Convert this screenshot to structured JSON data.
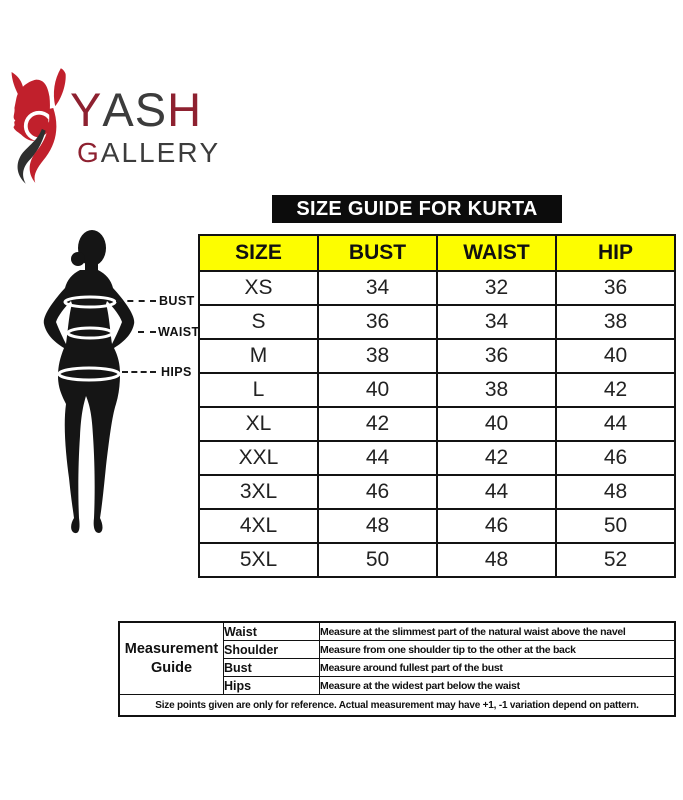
{
  "title": "SIZE GUIDE FOR KURTA",
  "brand": {
    "top_letters": [
      [
        "Y",
        "red"
      ],
      [
        "A",
        "dark"
      ],
      [
        "S",
        "dark"
      ],
      [
        "H",
        "red"
      ]
    ],
    "bottom_letters": [
      [
        "G",
        "red"
      ],
      [
        "A",
        "dark"
      ],
      [
        "L",
        "dark"
      ],
      [
        "L",
        "dark"
      ],
      [
        "E",
        "dark"
      ],
      [
        "R",
        "dark"
      ],
      [
        "Y",
        "dark"
      ]
    ]
  },
  "figure": {
    "labels": {
      "bust": "BUST",
      "waist": "WAIST",
      "hips": "HIPS"
    }
  },
  "size_table": {
    "headers": [
      "SIZE",
      "BUST",
      "WAIST",
      "HIP"
    ],
    "rows": [
      [
        "XS",
        "34",
        "32",
        "36"
      ],
      [
        "S",
        "36",
        "34",
        "38"
      ],
      [
        "M",
        "38",
        "36",
        "40"
      ],
      [
        "L",
        "40",
        "38",
        "42"
      ],
      [
        "XL",
        "42",
        "40",
        "44"
      ],
      [
        "XXL",
        "44",
        "42",
        "46"
      ],
      [
        "3XL",
        "46",
        "44",
        "48"
      ],
      [
        "4XL",
        "48",
        "46",
        "50"
      ],
      [
        "5XL",
        "50",
        "48",
        "52"
      ]
    ]
  },
  "measurement_guide": {
    "label": "Measurement Guide",
    "rows": [
      {
        "part": "Waist",
        "desc": "Measure at the slimmest part of the natural waist above the navel"
      },
      {
        "part": "Shoulder",
        "desc": "Measure from one shoulder tip to the other at the back"
      },
      {
        "part": "Bust",
        "desc": "Measure around fullest part of the bust"
      },
      {
        "part": "Hips",
        "desc": "Measure at the widest part below the waist"
      }
    ],
    "note": "Size points given are only for reference. Actual measurement may have +1, -1 variation depend on pattern."
  },
  "colors": {
    "accent_red": "#c1202c",
    "brand_letter_red": "#8e2130",
    "header_yellow": "#fdfd00",
    "title_bg": "#0c0c0c",
    "silhouette": "#151515"
  }
}
